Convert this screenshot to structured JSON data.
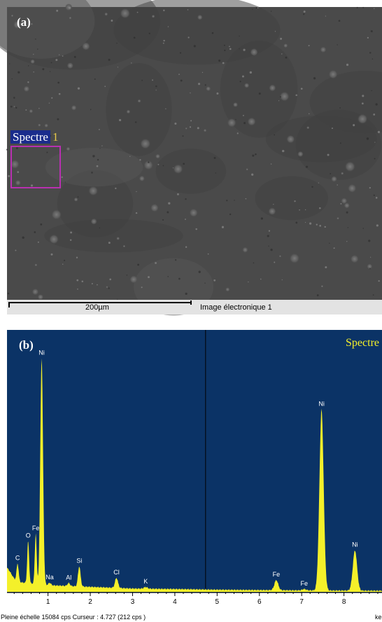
{
  "panel_a": {
    "label": "(a)",
    "spectrum_label_name": "Spectre",
    "spectrum_label_number": "1",
    "scale_bar_text": "200µm",
    "image_caption": "Image électronique 1"
  },
  "panel_b": {
    "label": "(b)",
    "spectrum_title": "Spectre",
    "footer_left": "Pleine échelle 15084 cps  Curseur : 4.727  (212 cps )",
    "footer_right": "ke"
  },
  "colors": {
    "sem_background": "#4a4a4a",
    "eds_background": "#0b3366",
    "spectrum_fill": "#f4f02a",
    "roi_box": "#b830b0"
  },
  "chart_data": {
    "type": "area",
    "title": "Spectre",
    "xlabel": "",
    "ylabel": "",
    "xlim": [
      0.03,
      8.9
    ],
    "ylim": [
      0,
      15084
    ],
    "x_ticks": [
      1,
      2,
      3,
      4,
      5,
      6,
      7,
      8
    ],
    "cursor_x": 4.727,
    "baseline": [
      {
        "x": 0.05,
        "y": 1400
      },
      {
        "x": 0.25,
        "y": 600
      },
      {
        "x": 1.0,
        "y": 400
      },
      {
        "x": 2.0,
        "y": 300
      },
      {
        "x": 3.0,
        "y": 200
      },
      {
        "x": 4.0,
        "y": 170
      },
      {
        "x": 5.0,
        "y": 130
      },
      {
        "x": 6.0,
        "y": 110
      },
      {
        "x": 7.0,
        "y": 90
      },
      {
        "x": 8.0,
        "y": 80
      },
      {
        "x": 8.9,
        "y": 70
      }
    ],
    "peaks": [
      {
        "label": "C",
        "x": 0.28,
        "height": 1100,
        "sigma": 0.025
      },
      {
        "label": "O",
        "x": 0.53,
        "height": 2500,
        "sigma": 0.022
      },
      {
        "label": "Fe",
        "x": 0.71,
        "height": 3000,
        "sigma": 0.022
      },
      {
        "label": "Ni",
        "x": 0.85,
        "height": 13500,
        "sigma": 0.032
      },
      {
        "label": "Na",
        "x": 1.04,
        "height": 150,
        "sigma": 0.03
      },
      {
        "label": "Al",
        "x": 1.49,
        "height": 180,
        "sigma": 0.03
      },
      {
        "label": "Si",
        "x": 1.74,
        "height": 1200,
        "sigma": 0.03
      },
      {
        "label": "Cl",
        "x": 2.62,
        "height": 600,
        "sigma": 0.035
      },
      {
        "label": "K",
        "x": 3.31,
        "height": 100,
        "sigma": 0.04
      },
      {
        "label": "Fe",
        "x": 6.4,
        "height": 600,
        "sigma": 0.045
      },
      {
        "label": "Fe",
        "x": 7.06,
        "height": 80,
        "sigma": 0.045
      },
      {
        "label": "Ni",
        "x": 7.47,
        "height": 10800,
        "sigma": 0.05
      },
      {
        "label": "Ni",
        "x": 8.26,
        "height": 2400,
        "sigma": 0.05
      }
    ]
  }
}
